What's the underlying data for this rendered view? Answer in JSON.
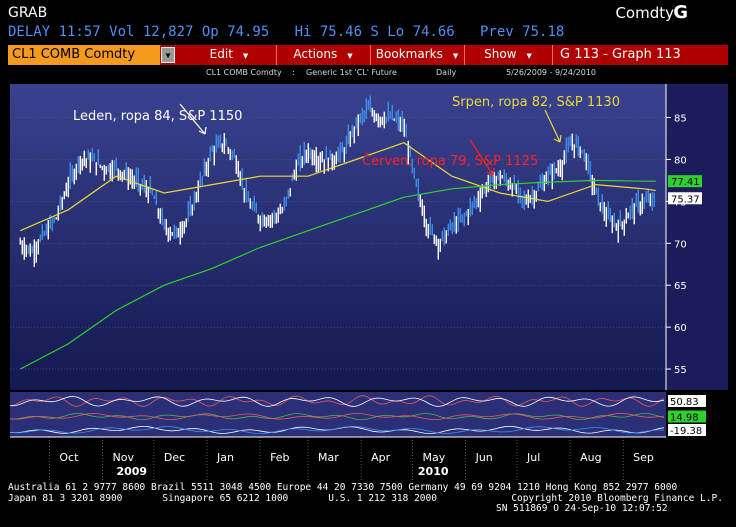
{
  "header": {
    "app_label": "GRAB",
    "market_label": "Comdty",
    "key_label": "G"
  },
  "quote_line": "DELAY 11:57 Vol 12,827 Op 74.95   Hi 75.46 S Lo 74.66   Prev 75.18",
  "toolbar": {
    "ticker": "CL1 COMB Comdty",
    "menus": [
      "Edit",
      "Actions",
      "Bookmarks",
      "Show"
    ],
    "graph_title": "G 113 - Graph 113"
  },
  "subheader": {
    "security": "CL1 COMB Comdty",
    "colon": ":",
    "description": "Generic 1st 'CL' Future",
    "period": "Daily",
    "range": "5/26/2009  -  9/24/2010"
  },
  "chart_data": {
    "type": "line",
    "series": [
      {
        "name": "",
        "kind": "price",
        "color": "#ffffff",
        "x": [
          "2009-09-14",
          "2009-09-21",
          "2009-09-28",
          "2009-10-05",
          "2009-10-12",
          "2009-10-19",
          "2009-10-26",
          "2009-11-02",
          "2009-11-09",
          "2009-11-16",
          "2009-11-23",
          "2009-11-30",
          "2009-12-07",
          "2009-12-14",
          "2009-12-21",
          "2009-12-28",
          "2010-01-04",
          "2010-01-11",
          "2010-01-18",
          "2010-01-25",
          "2010-02-01",
          "2010-02-08",
          "2010-02-15",
          "2010-02-22",
          "2010-03-01",
          "2010-03-08",
          "2010-03-15",
          "2010-03-22",
          "2010-03-29",
          "2010-04-05",
          "2010-04-12",
          "2010-04-19",
          "2010-04-26",
          "2010-05-03",
          "2010-05-10",
          "2010-05-17",
          "2010-05-24",
          "2010-05-31",
          "2010-06-07",
          "2010-06-14",
          "2010-06-21",
          "2010-06-28",
          "2010-07-05",
          "2010-07-12",
          "2010-07-19",
          "2010-07-26",
          "2010-08-02",
          "2010-08-09",
          "2010-08-16",
          "2010-08-23",
          "2010-08-30",
          "2010-09-06",
          "2010-09-13",
          "2010-09-20"
        ],
        "values": [
          70,
          69,
          71,
          73,
          77,
          80,
          80,
          79,
          79,
          78,
          77,
          76,
          72,
          71,
          73,
          77,
          81,
          82,
          80,
          75,
          73,
          73,
          74,
          79,
          81,
          80,
          80,
          81,
          84,
          86,
          85,
          85,
          84,
          77,
          72,
          70,
          72,
          73,
          75,
          77,
          78,
          77,
          75,
          76,
          78,
          79,
          82,
          81,
          76,
          73,
          72,
          74,
          75,
          75
        ]
      },
      {
        "name": "",
        "kind": "moving-average",
        "color": "#e8d836",
        "x": [
          "2009-09-14",
          "2009-10-12",
          "2009-11-09",
          "2009-12-07",
          "2010-01-04",
          "2010-02-01",
          "2010-03-01",
          "2010-03-29",
          "2010-04-26",
          "2010-05-24",
          "2010-06-21",
          "2010-07-19",
          "2010-08-16",
          "2010-09-13",
          "2010-09-20"
        ],
        "values": [
          71.5,
          74,
          78,
          76,
          77,
          78,
          78,
          80,
          82,
          78,
          76,
          75,
          77,
          76.5,
          76.3
        ]
      },
      {
        "name": "",
        "kind": "moving-average",
        "color": "#2fd12f",
        "x": [
          "2009-09-14",
          "2009-10-12",
          "2009-11-09",
          "2009-12-07",
          "2010-01-04",
          "2010-02-01",
          "2010-03-01",
          "2010-03-29",
          "2010-04-26",
          "2010-05-24",
          "2010-06-21",
          "2010-07-19",
          "2010-08-16",
          "2010-09-13",
          "2010-09-20"
        ],
        "values": [
          55,
          58,
          62,
          65,
          67,
          69.5,
          71.5,
          73.5,
          75.5,
          76.5,
          77,
          77.3,
          77.5,
          77.4,
          77.41
        ]
      }
    ],
    "last_values": [
      {
        "label": "77.41",
        "color": "#2fd12f",
        "text_color": "#000000"
      },
      {
        "label": "75.37",
        "color": "#ffffff",
        "text_color": "#000000"
      }
    ],
    "annotations": [
      {
        "text": "Leden, ropa 84, S&P 1150",
        "color": "#ffffff",
        "x": "2010-01-08",
        "y": 84
      },
      {
        "text": "Srpen, ropa 82, S&P 1130",
        "color": "#e8d836",
        "x": "2010-08-05",
        "y": 82
      },
      {
        "text": "Červen, ropa 79, S&P 1125",
        "color": "#ff2020",
        "x": "2010-06-25",
        "y": 78.5
      }
    ],
    "y_ticks": [
      55,
      60,
      65,
      70,
      75,
      80,
      85
    ],
    "ylim": [
      52.5,
      89
    ],
    "x_month_labels": [
      "Oct",
      "Nov",
      "Dec",
      "Jan",
      "Feb",
      "Mar",
      "Apr",
      "May",
      "Jun",
      "Jul",
      "Aug",
      "Sep"
    ],
    "x_year_labels": [
      "2009",
      "2010"
    ],
    "oscillators": [
      {
        "label": "50.83",
        "color": "#ffffff"
      },
      {
        "label": "14.98",
        "color": "#2fd12f"
      },
      {
        "label": "-19.38",
        "color": "#ffffff"
      }
    ]
  },
  "footer": {
    "line1": "Australia 61 2 9777 8600 Brazil 5511 3048 4500 Europe 44 20 7330 7500 Germany 49 69 9204 1210 Hong Kong 852 2977 6000",
    "line2": "Japan 81 3 3201 8900       Singapore 65 6212 1000       U.S. 1 212 318 2000             Copyright 2010 Bloomberg Finance L.P.",
    "line3": "SN 511869 O 24-Sep-10 12:07:52"
  },
  "colors": {
    "panel_bg": "#1c2066",
    "toolbar_bg": "#b00000",
    "ticker_bg": "#f59a1d",
    "quote_text": "#4f8ff0"
  }
}
